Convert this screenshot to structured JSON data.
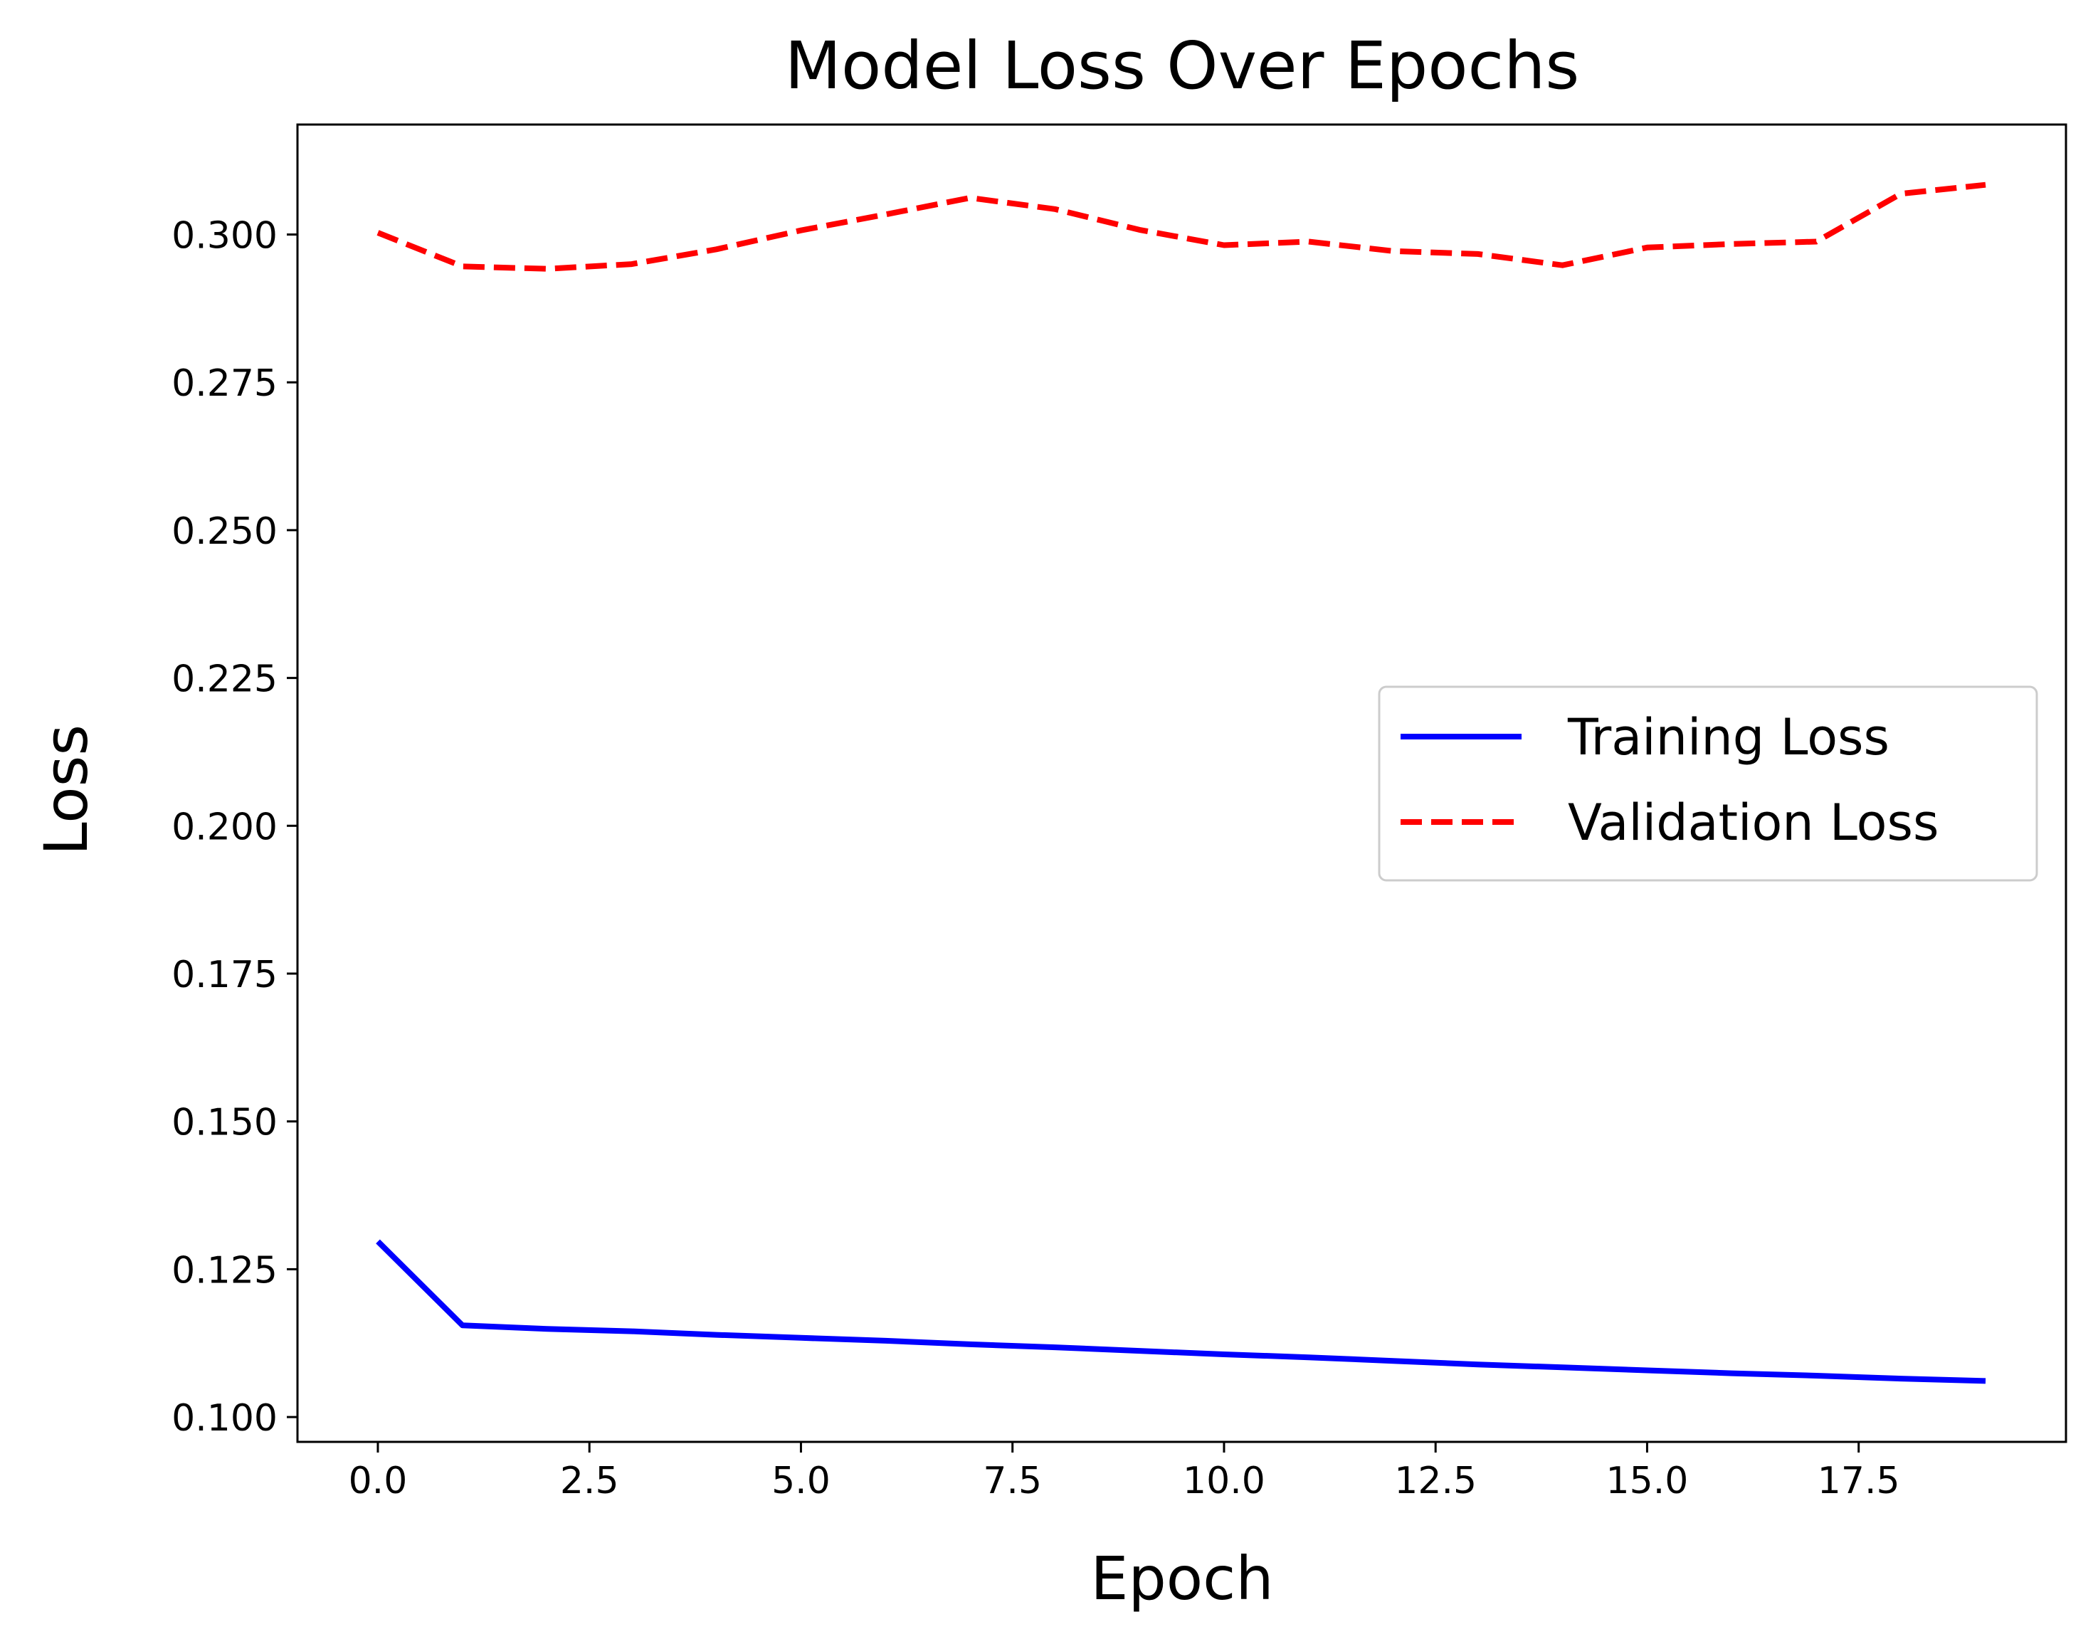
{
  "chart_data": {
    "type": "line",
    "title": "Model Loss Over Epochs",
    "xlabel": "Epoch",
    "ylabel": "Loss",
    "x": [
      0,
      1,
      2,
      3,
      4,
      5,
      6,
      7,
      8,
      9,
      10,
      11,
      12,
      13,
      14,
      15,
      16,
      17,
      18,
      19
    ],
    "series": [
      {
        "name": "Training Loss",
        "color": "#0000ff",
        "style": "solid",
        "values": [
          0.1297,
          0.1155,
          0.1149,
          0.1145,
          0.1139,
          0.1134,
          0.1129,
          0.1123,
          0.1118,
          0.1112,
          0.1106,
          0.1101,
          0.1095,
          0.1089,
          0.1084,
          0.1079,
          0.1074,
          0.107,
          0.1065,
          0.1061
        ]
      },
      {
        "name": "Validation Loss",
        "color": "#ff0000",
        "style": "dashed",
        "values": [
          0.3003,
          0.2946,
          0.2942,
          0.295,
          0.2975,
          0.3007,
          0.3034,
          0.3062,
          0.3043,
          0.3008,
          0.2982,
          0.2988,
          0.2972,
          0.2967,
          0.2948,
          0.2978,
          0.2984,
          0.2988,
          0.3069,
          0.3084
        ]
      }
    ],
    "xlim": [
      -0.95,
      19.95
    ],
    "ylim": [
      0.0958,
      0.3186
    ],
    "x_ticks": [
      0,
      2.5,
      5,
      7.5,
      10,
      12.5,
      15,
      17.5
    ],
    "x_tick_labels": [
      "0.0",
      "2.5",
      "5.0",
      "7.5",
      "10.0",
      "12.5",
      "15.0",
      "17.5"
    ],
    "y_ticks": [
      0.1,
      0.125,
      0.15,
      0.175,
      0.2,
      0.225,
      0.25,
      0.275,
      0.3
    ],
    "y_tick_labels": [
      "0.100",
      "0.125",
      "0.150",
      "0.175",
      "0.200",
      "0.225",
      "0.250",
      "0.275",
      "0.300"
    ],
    "grid": false,
    "legend_position": "center-right"
  }
}
